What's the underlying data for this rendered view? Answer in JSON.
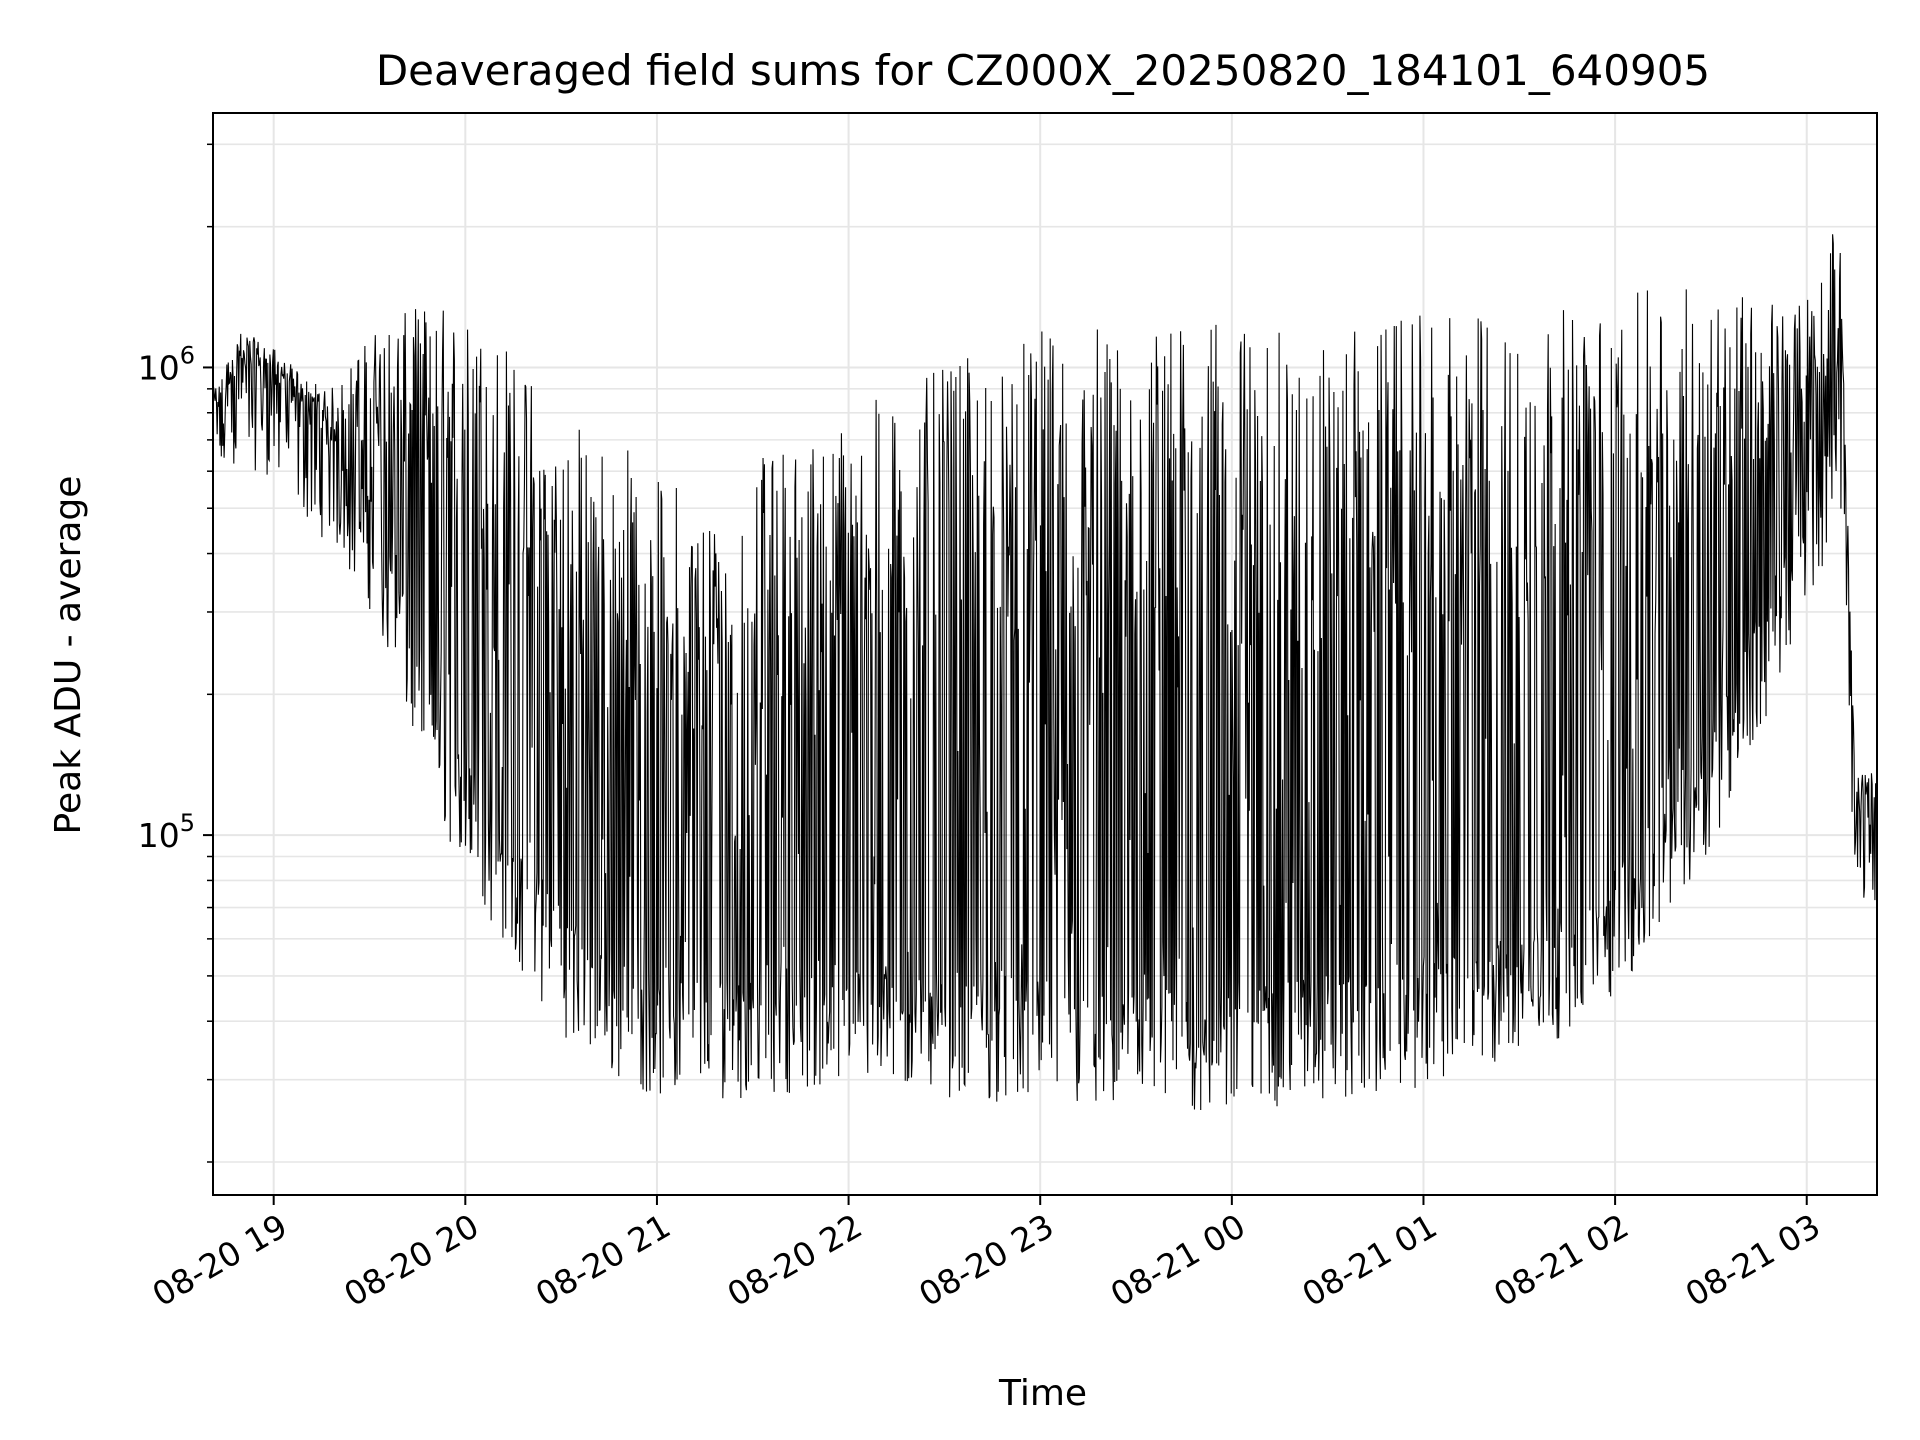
{
  "chart_data": {
    "type": "line",
    "title": "Deaveraged field sums for CZ000X_20250820_184101_640905",
    "xlabel": "Time",
    "ylabel": "Peak ADU - average",
    "yscale": "log",
    "ylim": [
      17000,
      3500000
    ],
    "xlim": [
      "2025-08-20 18:41",
      "2025-08-21 03:22"
    ],
    "grid": true,
    "line_color": "#000000",
    "x_ticks": [
      "08-20 19",
      "08-20 20",
      "08-20 21",
      "08-20 22",
      "08-20 23",
      "08-21 00",
      "08-21 01",
      "08-21 02",
      "08-21 03"
    ],
    "y_ticks": [
      {
        "base": "10",
        "exp": "5",
        "value": 100000
      },
      {
        "base": "10",
        "exp": "6",
        "value": 1000000
      }
    ],
    "series": [
      {
        "x": [
          "2025-08-20 18:41",
          "2025-08-20 18:50",
          "2025-08-20 19:00",
          "2025-08-20 19:10",
          "2025-08-20 19:20",
          "2025-08-20 19:30",
          "2025-08-20 19:40",
          "2025-08-20 19:50",
          "2025-08-20 20:00",
          "2025-08-20 20:10",
          "2025-08-20 20:20",
          "2025-08-20 20:30",
          "2025-08-20 20:40",
          "2025-08-20 20:50",
          "2025-08-20 21:00",
          "2025-08-20 21:15",
          "2025-08-20 21:30",
          "2025-08-20 21:45",
          "2025-08-20 22:00",
          "2025-08-20 22:15",
          "2025-08-20 22:30",
          "2025-08-20 22:45",
          "2025-08-20 23:00",
          "2025-08-20 23:15",
          "2025-08-20 23:30",
          "2025-08-20 23:45",
          "2025-08-21 00:00",
          "2025-08-21 00:15",
          "2025-08-21 00:30",
          "2025-08-21 00:45",
          "2025-08-21 01:00",
          "2025-08-21 01:15",
          "2025-08-21 01:30",
          "2025-08-21 01:45",
          "2025-08-21 02:00",
          "2025-08-21 02:15",
          "2025-08-21 02:30",
          "2025-08-21 02:45",
          "2025-08-21 02:55",
          "2025-08-21 03:05",
          "2025-08-21 03:10",
          "2025-08-21 03:15",
          "2025-08-21 03:22"
        ],
        "baseline": [
          650000,
          850000,
          800000,
          650000,
          550000,
          420000,
          260000,
          160000,
          110000,
          85000,
          65000,
          52000,
          45000,
          40000,
          38000,
          37000,
          38000,
          39000,
          40000,
          39000,
          38000,
          37000,
          36000,
          35000,
          34000,
          34000,
          35000,
          36000,
          37000,
          38000,
          40000,
          42000,
          45000,
          52000,
          62000,
          85000,
          130000,
          220000,
          340000,
          520000,
          850000,
          100000,
          100000
        ],
        "peak": [
          900000,
          1200000,
          1100000,
          950000,
          900000,
          1200000,
          1300000,
          1400000,
          1300000,
          1200000,
          1000000,
          800000,
          750000,
          700000,
          600000,
          550000,
          650000,
          700000,
          800000,
          900000,
          1000000,
          1100000,
          1200000,
          1250000,
          1250000,
          1250000,
          1250000,
          1200000,
          1150000,
          1250000,
          1300000,
          1300000,
          1350000,
          1350000,
          1400000,
          1500000,
          1550000,
          1500000,
          1300000,
          1600000,
          2400000,
          140000,
          130000
        ]
      }
    ]
  }
}
